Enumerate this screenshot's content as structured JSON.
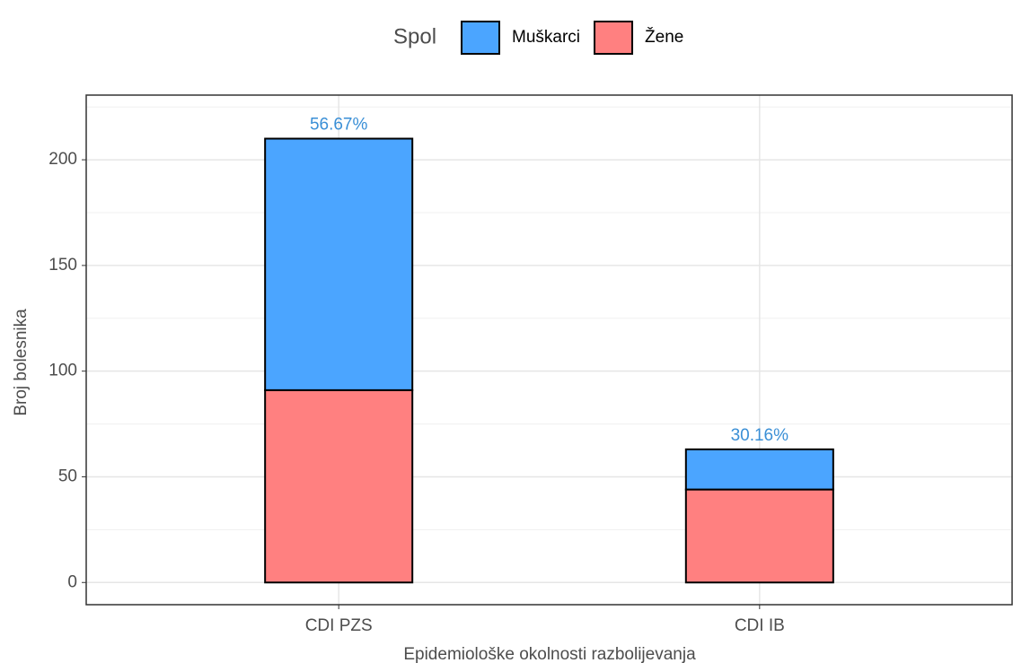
{
  "chart_data": {
    "type": "stacked_bar",
    "x_label": "Epidemiološke okolnosti razbolijevanja",
    "y_label": "Broj bolesnika",
    "legend_title": "Spol",
    "legend_position": "top",
    "categories": [
      "CDI PZS",
      "CDI IB"
    ],
    "series": [
      {
        "name": "Žene",
        "color": "#ff8080",
        "values": [
          91,
          44
        ]
      },
      {
        "name": "Muškarci",
        "color": "#4ba5ff",
        "values": [
          119,
          19
        ]
      }
    ],
    "annotations": [
      "56.67%",
      "30.16%"
    ],
    "annotation_color": "#3a8fd6",
    "ylim": [
      -10.5,
      230.6
    ],
    "yticks": [
      0,
      50,
      100,
      150,
      200
    ],
    "minor_yticks": [
      25,
      75,
      125,
      175,
      225
    ],
    "grid": true
  }
}
